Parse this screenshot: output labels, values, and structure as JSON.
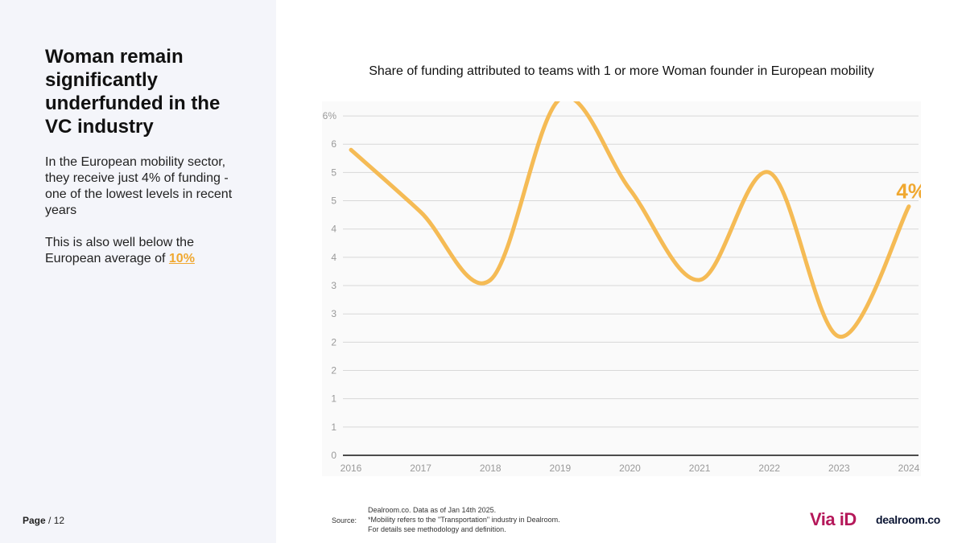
{
  "headline": "Woman remain significantly underfunded in the VC industry",
  "body": {
    "para1": "In the European mobility sector, they receive just 4% of funding - one of the lowest levels in recent years",
    "para2_prefix": "This is also well below the European average of ",
    "para2_highlight": "10%"
  },
  "page": {
    "label": "Page",
    "suffix": "/ 12"
  },
  "source": {
    "label": "Source:",
    "lines": [
      "Dealroom.co.   Data as of Jan 14th 2025.",
      "*Mobility refers to the \"Transportation\" industry in Dealroom.",
      "For details see methodology and definition."
    ]
  },
  "logos": {
    "via": "Via iD",
    "dealroom": "dealroom.co"
  },
  "colors": {
    "accent": "#f0a830",
    "line": "#f5bb55",
    "panel": "#f4f5fa",
    "via": "#b5185a"
  },
  "chart_data": {
    "type": "line",
    "title": "Share of funding attributed to teams with 1 or more Woman founder in European mobility",
    "x": [
      "2016",
      "2017",
      "2018",
      "2019",
      "2020",
      "2021",
      "2022",
      "2023",
      "2024"
    ],
    "series": [
      {
        "values": [
          5.4,
          4.3,
          3.1,
          6.3,
          4.7,
          3.1,
          5.0,
          2.1,
          4.4
        ]
      }
    ],
    "ylim": [
      0,
      6.2
    ],
    "y_ticks": [
      {
        "value": 0,
        "label": "0"
      },
      {
        "value": 0.5,
        "label": "1"
      },
      {
        "value": 1.0,
        "label": "1"
      },
      {
        "value": 1.5,
        "label": "2"
      },
      {
        "value": 2.0,
        "label": "2"
      },
      {
        "value": 2.5,
        "label": "3"
      },
      {
        "value": 3.0,
        "label": "3"
      },
      {
        "value": 3.5,
        "label": "4"
      },
      {
        "value": 4.0,
        "label": "4"
      },
      {
        "value": 4.5,
        "label": "5"
      },
      {
        "value": 5.0,
        "label": "5"
      },
      {
        "value": 5.5,
        "label": "6"
      },
      {
        "value": 6.0,
        "label": "6%"
      }
    ],
    "annotation": "4%",
    "grid": true
  }
}
